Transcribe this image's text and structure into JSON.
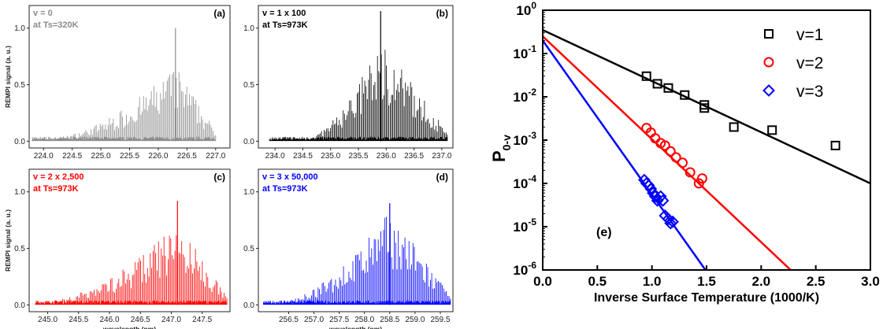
{
  "chart_data": [
    {
      "id": "a",
      "type": "line",
      "panel_label": "(a)",
      "annotation": [
        "v = 0",
        "at Ts=320K"
      ],
      "color": "#8c8c8c",
      "ylabel": "REMPI signal (a. u.)",
      "xlabel": "",
      "xlim": [
        223.75,
        227.25
      ],
      "ylim": [
        -0.06,
        1.2
      ],
      "xticks": [
        "224.0",
        "224.5",
        "225.0",
        "225.5",
        "226.0",
        "226.5",
        "227.0"
      ],
      "yticks": [
        "0.0",
        "0.5",
        "1.0"
      ],
      "envelope": {
        "start": 223.8,
        "end": 227.0,
        "peak_x": 226.3,
        "peak_y": 1.0,
        "band_max": 0.55,
        "rise_from": 224.2
      }
    },
    {
      "id": "b",
      "type": "line",
      "panel_label": "(b)",
      "annotation": [
        "v = 1 x 100",
        "at Ts=973K"
      ],
      "color": "#000000",
      "ylabel": "",
      "xlabel": "",
      "xlim": [
        233.7,
        237.2
      ],
      "ylim": [
        -0.06,
        1.2
      ],
      "xticks": [
        "234.0",
        "234.5",
        "235.0",
        "235.5",
        "236.0",
        "236.5",
        "237.0"
      ],
      "yticks": [
        "0.0",
        "0.5",
        "1.0"
      ],
      "envelope": {
        "start": 233.9,
        "end": 237.1,
        "peak_x": 235.9,
        "peak_y": 1.15,
        "band_max": 0.75,
        "rise_from": 234.6
      }
    },
    {
      "id": "c",
      "type": "line",
      "panel_label": "(c)",
      "annotation": [
        "v = 2 x 2,500",
        "at Ts=973K"
      ],
      "color": "#ff0000",
      "ylabel": "REMPI signal (a. u.)",
      "xlabel": "wavelength (nm)",
      "xlim": [
        244.7,
        247.95
      ],
      "ylim": [
        -0.06,
        1.2
      ],
      "xticks": [
        "245.0",
        "245.5",
        "246.0",
        "246.5",
        "247.0",
        "247.5"
      ],
      "yticks": [
        "0.0",
        "0.5",
        "1.0"
      ],
      "envelope": {
        "start": 244.8,
        "end": 247.9,
        "peak_x": 247.1,
        "peak_y": 0.92,
        "band_max": 0.6,
        "rise_from": 245.0
      }
    },
    {
      "id": "d",
      "type": "line",
      "panel_label": "(d)",
      "annotation": [
        "v = 3 x 50,000",
        "at Ts=973K"
      ],
      "color": "#0000ff",
      "ylabel": "",
      "xlabel": "wavelength (nm)",
      "xlim": [
        255.9,
        259.75
      ],
      "ylim": [
        -0.06,
        1.2
      ],
      "xticks": [
        "256.5",
        "257.0",
        "257.5",
        "258.0",
        "258.5",
        "259.0",
        "259.5"
      ],
      "yticks": [
        "0.0",
        "0.5",
        "1.0"
      ],
      "envelope": {
        "start": 256.0,
        "end": 259.7,
        "peak_x": 258.5,
        "peak_y": 0.9,
        "band_max": 0.7,
        "rise_from": 256.4
      }
    },
    {
      "id": "e",
      "type": "scatter",
      "panel_label": "(e)",
      "log_y": true,
      "xlabel": "Inverse Surface Temperature (1000/K)",
      "ylabel_main": "P",
      "ylabel_sub": "0-v",
      "xlim": [
        0.0,
        3.0
      ],
      "ylim_exp": [
        -6,
        0
      ],
      "xticks": [
        "0.0",
        "0.5",
        "1.0",
        "1.5",
        "2.0",
        "2.5",
        "3.0"
      ],
      "yticks": [
        {
          "base": "10",
          "exp": "0"
        },
        {
          "base": "10",
          "exp": "-1"
        },
        {
          "base": "10",
          "exp": "-2"
        },
        {
          "base": "10",
          "exp": "-3"
        },
        {
          "base": "10",
          "exp": "-4"
        },
        {
          "base": "10",
          "exp": "-5"
        },
        {
          "base": "10",
          "exp": "-6"
        }
      ],
      "series": [
        {
          "name": "v=1",
          "marker": "square",
          "color": "#000000",
          "points": [
            [
              0.95,
              0.03
            ],
            [
              1.05,
              0.02
            ],
            [
              1.15,
              0.016
            ],
            [
              1.3,
              0.011
            ],
            [
              1.48,
              0.0065
            ],
            [
              1.48,
              0.0055
            ],
            [
              1.75,
              0.002
            ],
            [
              2.1,
              0.0017
            ],
            [
              2.68,
              0.00075
            ]
          ],
          "fit": [
            [
              0.0,
              0.35
            ],
            [
              3.0,
              0.0001
            ]
          ]
        },
        {
          "name": "v=2",
          "marker": "circle",
          "color": "#ff0000",
          "points": [
            [
              0.95,
              0.0019
            ],
            [
              0.99,
              0.0015
            ],
            [
              1.03,
              0.0011
            ],
            [
              1.08,
              0.00085
            ],
            [
              1.12,
              0.00075
            ],
            [
              1.17,
              0.00055
            ],
            [
              1.22,
              0.0004
            ],
            [
              1.28,
              0.0003
            ],
            [
              1.35,
              0.00018
            ],
            [
              1.43,
              0.0001
            ],
            [
              1.46,
              0.00013
            ]
          ],
          "fit": [
            [
              0.0,
              0.25
            ],
            [
              2.27,
              1e-06
            ]
          ]
        },
        {
          "name": "v=3",
          "marker": "diamond",
          "color": "#0000ff",
          "points": [
            [
              0.93,
              0.00012
            ],
            [
              0.95,
              0.0001
            ],
            [
              0.97,
              9e-05
            ],
            [
              0.99,
              7.5e-05
            ],
            [
              1.01,
              6e-05
            ],
            [
              1.03,
              5e-05
            ],
            [
              1.05,
              4e-05
            ],
            [
              1.08,
              5e-05
            ],
            [
              1.1,
              4e-05
            ],
            [
              1.12,
              1.8e-05
            ],
            [
              1.15,
              1.5e-05
            ],
            [
              1.17,
              1.2e-05
            ],
            [
              1.19,
              1.3e-05
            ]
          ],
          "fit": [
            [
              0.0,
              0.2
            ],
            [
              1.49,
              1e-06
            ]
          ]
        }
      ],
      "legend_position": "top-right"
    }
  ]
}
